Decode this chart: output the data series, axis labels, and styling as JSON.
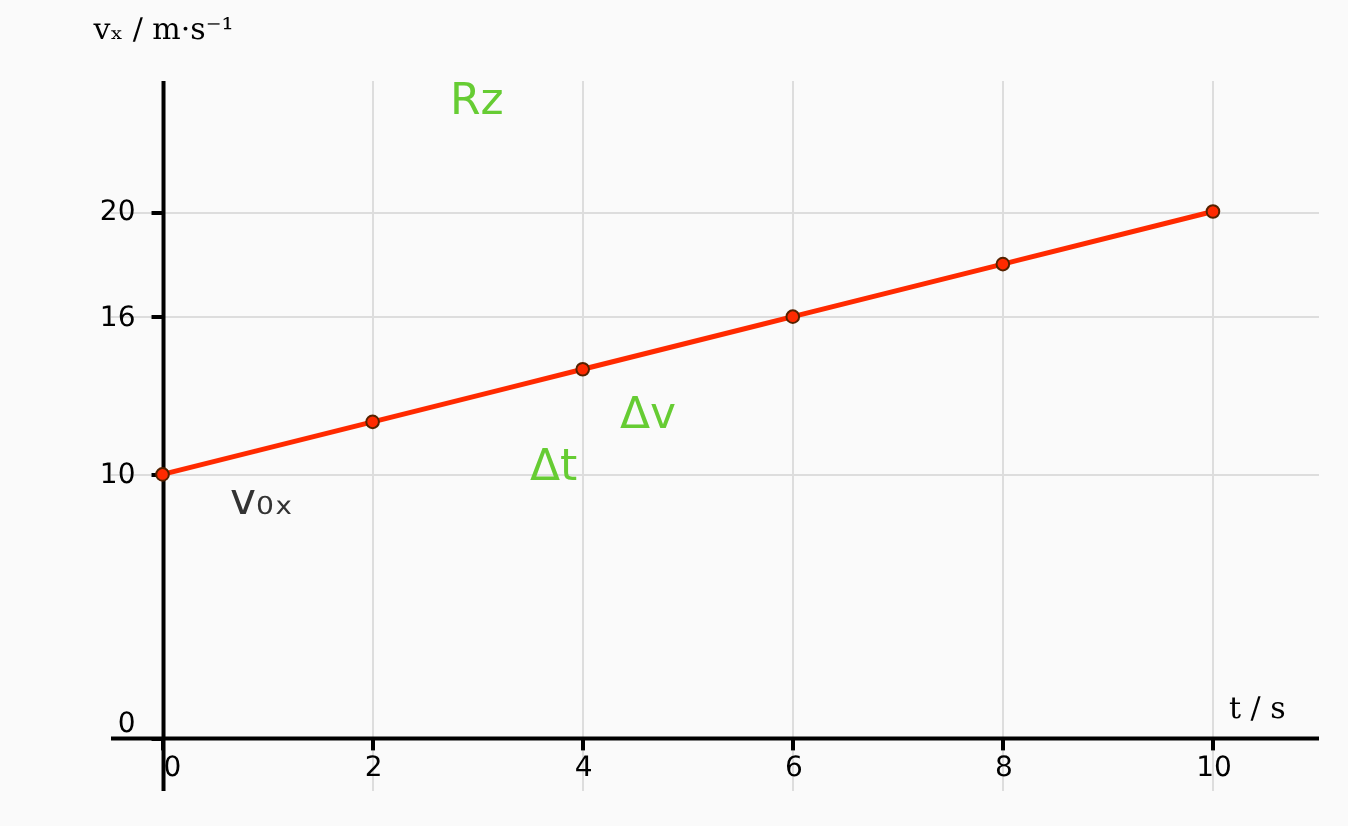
{
  "chart_data": {
    "type": "line",
    "xlabel": "t / s",
    "ylabel": "vₓ / m·s⁻¹",
    "x": [
      0,
      2,
      4,
      6,
      8,
      10
    ],
    "series": [
      {
        "color": "#ff2a00",
        "values": [
          10,
          12,
          14,
          16,
          18,
          20
        ]
      }
    ],
    "marker": "circle",
    "line_style": "solid",
    "xlim": [
      -0.5,
      11
    ],
    "ylim": [
      -2,
      25
    ],
    "xticks": [
      0,
      2,
      4,
      6,
      8,
      10
    ],
    "yticks": [
      0,
      10,
      16,
      20
    ],
    "grid": true,
    "annotations": [
      "Rz",
      "Δt",
      "Δv",
      "v₀ₓ"
    ]
  }
}
